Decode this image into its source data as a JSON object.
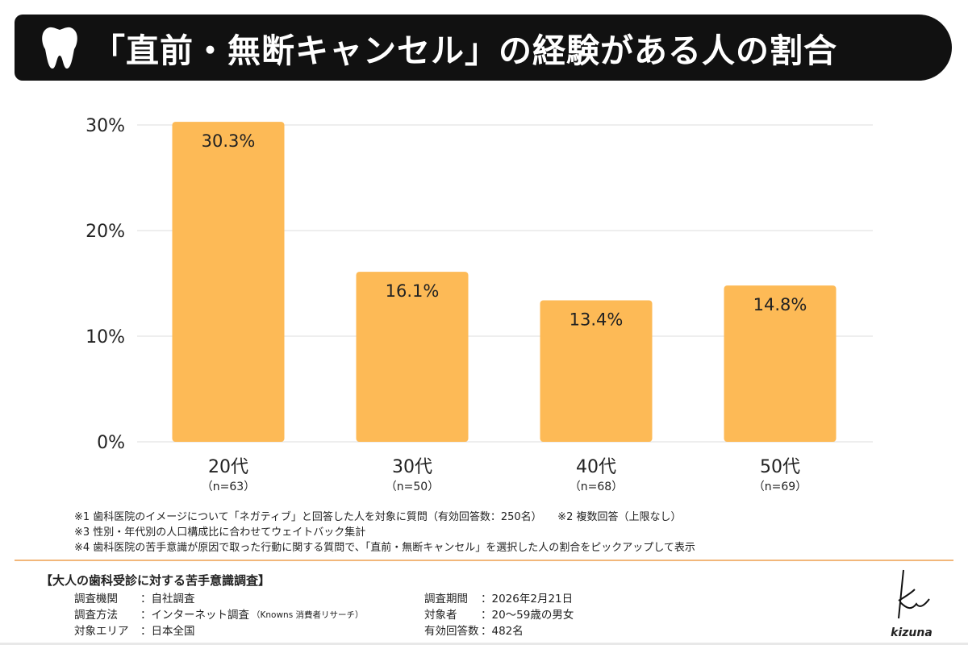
{
  "header": {
    "title": "「直前・無断キャンセル」の経験がある人の割合",
    "icon": "tooth-icon"
  },
  "chart_data": {
    "type": "bar",
    "title": "「直前・無断キャンセル」の経験がある人の割合",
    "categories": [
      "20代",
      "30代",
      "40代",
      "50代"
    ],
    "category_sublabels": [
      "（n=63）",
      "（n=50）",
      "（n=68）",
      "（n=69）"
    ],
    "values": [
      30.3,
      16.1,
      13.4,
      14.8
    ],
    "data_labels": [
      "30.3%",
      "16.1%",
      "13.4%",
      "14.8%"
    ],
    "yticks": [
      "0%",
      "10%",
      "20%",
      "30%"
    ],
    "ytick_values": [
      0,
      10,
      20,
      30
    ],
    "ylim": [
      0,
      30
    ],
    "grid": true,
    "xlabel": "",
    "ylabel": "",
    "bar_color": "#FDBA56"
  },
  "notes": [
    "※1 歯科医院のイメージについて「ネガティブ」と回答した人を対象に質問（有効回答数：250名）　　※2 複数回答（上限なし）",
    "※3 性別・年代別の人口構成比に合わせてウェイトバック集計",
    "※4 歯科医院の苦手意識が原因で取った行動に関する質問で、「直前・無断キャンセル」を選択した人の割合をピックアップして表示"
  ],
  "survey": {
    "title": "【大人の歯科受診に対する苦手意識調査】",
    "left": [
      {
        "k": "調査機関",
        "v": "：自社調査"
      },
      {
        "k": "調査方法",
        "v": "：インターネット調査",
        "small": "（Knowns 消費者リサーチ）"
      },
      {
        "k": "対象エリア",
        "v": "：日本全国"
      }
    ],
    "right": [
      {
        "k": "調査期間",
        "v": "：2026年2月21日"
      },
      {
        "k": "対象者",
        "v": "：20～59歳の男女"
      },
      {
        "k": "有効回答数",
        "v": "：482名"
      }
    ]
  },
  "logo": {
    "text": "kizuna"
  }
}
